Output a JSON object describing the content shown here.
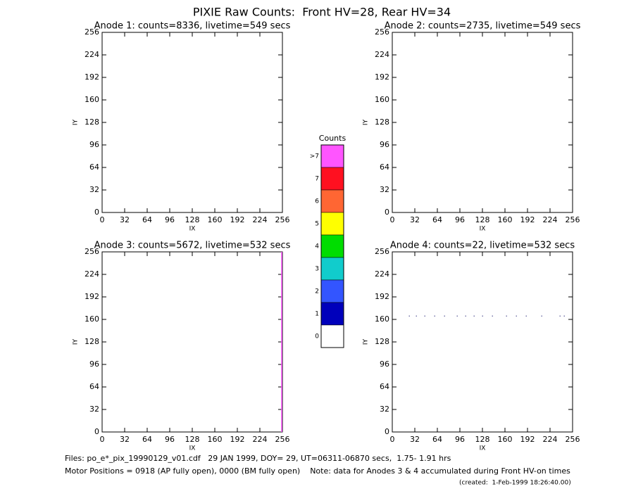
{
  "title": "PIXIE Raw Counts:  Front HV=28, Rear HV=34",
  "footer": [
    "Files: po_e*_pix_19990129_v01.cdf   29 JAN 1999, DOY= 29, UT=06311-06870 secs,  1.75- 1.91 hrs",
    "Motor Positions = 0918 (AP fully open), 0000 (BM fully open)    Note: data for Anodes 3 & 4 accumulated during Front HV-on times",
    "(created:  1-Feb-1999 18:26:40.00)"
  ],
  "chart_data": [
    {
      "type": "scatter",
      "title": "Anode 1: counts=8336, livetime=549 secs",
      "x_label": "IX",
      "y_label": "IY",
      "xlim": [
        0,
        256
      ],
      "ylim": [
        0,
        256
      ],
      "xticks": [
        0,
        32,
        64,
        96,
        128,
        160,
        192,
        224,
        256
      ],
      "yticks": [
        0,
        32,
        64,
        96,
        128,
        160,
        192,
        224,
        256
      ]
    },
    {
      "type": "scatter",
      "title": "Anode 2: counts=2735, livetime=549 secs",
      "x_label": "IX",
      "y_label": "IY",
      "xlim": [
        0,
        256
      ],
      "ylim": [
        0,
        256
      ],
      "xticks": [
        0,
        32,
        64,
        96,
        128,
        160,
        192,
        224,
        256
      ],
      "yticks": [
        0,
        32,
        64,
        96,
        128,
        160,
        192,
        224,
        256
      ]
    },
    {
      "type": "line",
      "title": "Anode 3: counts=5672, livetime=532 secs",
      "x_label": "IX",
      "y_label": "IY",
      "xlim": [
        0,
        256
      ],
      "ylim": [
        0,
        256
      ],
      "xticks": [
        0,
        32,
        64,
        96,
        128,
        160,
        192,
        224,
        256
      ],
      "yticks": [
        0,
        32,
        64,
        96,
        128,
        160,
        192,
        224,
        256
      ],
      "x": [
        255,
        255
      ],
      "y": [
        0,
        256
      ],
      "color": "#ff55ff"
    },
    {
      "type": "scatter",
      "title": "Anode 4: counts=22, livetime=532 secs",
      "x_label": "IX",
      "y_label": "IY",
      "xlim": [
        0,
        256
      ],
      "ylim": [
        0,
        256
      ],
      "xticks": [
        0,
        32,
        64,
        96,
        128,
        160,
        192,
        224,
        256
      ],
      "yticks": [
        0,
        32,
        64,
        96,
        128,
        160,
        192,
        224,
        256
      ],
      "x": [
        24,
        34,
        46,
        60,
        74,
        92,
        104,
        116,
        128,
        142,
        162,
        176,
        190,
        212,
        238,
        244
      ],
      "y": [
        165,
        165,
        165,
        165,
        165,
        165,
        165,
        165,
        165,
        165,
        165,
        165,
        165,
        165,
        165,
        165
      ],
      "color": "#7777aa"
    },
    {
      "type": "colorbar",
      "title": "Counts",
      "labels": [
        ">7",
        "7",
        "6",
        "5",
        "4",
        "3",
        "2",
        "1",
        "0"
      ],
      "colors": [
        "#ff55ff",
        "#ff1020",
        "#ff6633",
        "#ffff00",
        "#00dd00",
        "#11cccc",
        "#3355ff",
        "#0000bb",
        "#ffffff"
      ]
    }
  ]
}
